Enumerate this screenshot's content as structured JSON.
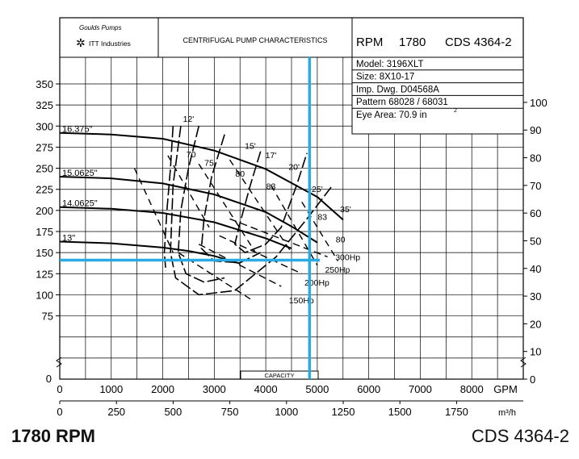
{
  "header": {
    "logo_line1": "Goulds Pumps",
    "logo_line2": "ITT Industries",
    "title": "CENTRIFUGAL PUMP CHARACTERISTICS",
    "rpm_label": "RPM",
    "rpm_value": "1780",
    "cds": "CDS 4364-2",
    "info": [
      "Model: 3196XLT",
      "Size: 8X10-17",
      "Imp. Dwg. D04568A",
      "Pattern 68028 / 68031",
      "Eye Area:   70.9 in"
    ],
    "eye_area_sup": "2"
  },
  "footer": {
    "left": "1780 RPM",
    "right": "CDS 4364-2"
  },
  "colors": {
    "line": "#000000",
    "highlight": "#29abe2"
  },
  "chart_data": {
    "type": "line",
    "x": {
      "unit": "GPM",
      "range": [
        0,
        9000
      ],
      "ticks": [
        0,
        1000,
        2000,
        3000,
        4000,
        5000,
        6000,
        7000,
        8000
      ]
    },
    "x2": {
      "unit": "m³/h",
      "ticks": [
        0,
        250,
        500,
        750,
        1000,
        1250,
        1500,
        1750
      ]
    },
    "y_left": {
      "unit": "ft",
      "range": [
        0,
        370
      ],
      "ticks": [
        75,
        100,
        125,
        150,
        175,
        200,
        225,
        250,
        275,
        300,
        325,
        350
      ]
    },
    "y_right": {
      "unit": "m",
      "ticks": [
        0,
        10,
        20,
        30,
        40,
        50,
        60,
        70,
        80,
        90,
        100
      ]
    },
    "x_ticklabels": [
      "0",
      "1000",
      "2000",
      "3000",
      "4000",
      "5000",
      "6000",
      "7000",
      "8000"
    ],
    "x2_ticklabels": [
      "0",
      "250",
      "500",
      "750",
      "1000",
      "1250",
      "1500",
      "1750"
    ],
    "y_left_ticklabels": [
      "75",
      "100",
      "125",
      "150",
      "175",
      "200",
      "225",
      "250",
      "275",
      "300",
      "325",
      "350"
    ],
    "y_right_ticklabels": [
      "0",
      "10",
      "20",
      "30",
      "40",
      "50",
      "60",
      "70",
      "80",
      "90",
      "100"
    ],
    "xlabel": "GPM",
    "xlabel2": "m³/h",
    "capacity_label": "CAPACITY",
    "head_zero_label": "0",
    "impeller_curves": [
      {
        "name": "16.375\"",
        "points": [
          [
            0,
            292
          ],
          [
            1000,
            290
          ],
          [
            2000,
            285
          ],
          [
            3000,
            271
          ],
          [
            4000,
            249
          ],
          [
            5000,
            216
          ],
          [
            5500,
            189
          ]
        ]
      },
      {
        "name": "15.0625\"",
        "points": [
          [
            0,
            240
          ],
          [
            1000,
            238
          ],
          [
            2000,
            232
          ],
          [
            3000,
            219
          ],
          [
            4000,
            198
          ],
          [
            4500,
            181
          ],
          [
            5000,
            162
          ]
        ]
      },
      {
        "name": "14.0625\"",
        "points": [
          [
            0,
            204
          ],
          [
            1000,
            202
          ],
          [
            2000,
            197
          ],
          [
            3000,
            186
          ],
          [
            4000,
            167
          ],
          [
            4500,
            155
          ]
        ]
      },
      {
        "name": "13\"",
        "points": [
          [
            0,
            163
          ],
          [
            1000,
            161
          ],
          [
            2000,
            156
          ],
          [
            2500,
            152
          ],
          [
            3000,
            146
          ],
          [
            3500,
            137
          ]
        ]
      }
    ],
    "efficiency_labels": [
      "70",
      "75",
      "80",
      "83",
      "83",
      "80"
    ],
    "npsh_labels": [
      "12'",
      "15'",
      "17'",
      "20'",
      "25'",
      "35'"
    ],
    "power_labels": [
      "300Hp",
      "250Hp",
      "200Hp",
      "150Hp"
    ],
    "operating_point": {
      "gpm": 4850,
      "head_ft": 141
    }
  }
}
